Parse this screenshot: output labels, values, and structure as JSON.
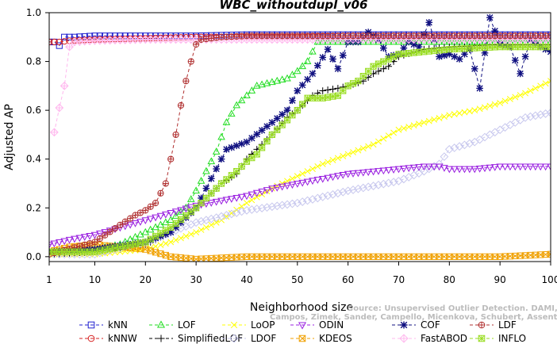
{
  "chart_data": {
    "type": "line",
    "title": "WBC_withoutdupl_v06",
    "xlabel": "Neighborhood size",
    "ylabel": "Adjusted AP",
    "xlim": [
      1,
      100
    ],
    "ylim": [
      -0.02,
      1.0
    ],
    "xticks": [
      1,
      10,
      20,
      30,
      40,
      50,
      60,
      70,
      80,
      90,
      100
    ],
    "yticks": [
      "0.0",
      "0.2",
      "0.4",
      "0.6",
      "0.8",
      "1.0"
    ],
    "grid": false,
    "legend_position": "bottom",
    "watermark_line1": "Source: Unsupervised Outlier Detection. DAMI, 2015.",
    "watermark_line2": "Campos, Zimek, Sander, Campello, Micenkova, Schubert, Assent, Houle",
    "series": [
      {
        "name": "kNN",
        "color": "#1f1fcf",
        "marker": "square",
        "points": [
          [
            1,
            0.88
          ],
          [
            2,
            0.88
          ],
          [
            3,
            0.865
          ],
          [
            4,
            0.9
          ],
          [
            5,
            0.9
          ],
          [
            6,
            0.9
          ],
          [
            10,
            0.905
          ],
          [
            20,
            0.905
          ],
          [
            30,
            0.905
          ],
          [
            40,
            0.91
          ],
          [
            50,
            0.91
          ],
          [
            60,
            0.91
          ],
          [
            70,
            0.91
          ],
          [
            80,
            0.91
          ],
          [
            90,
            0.91
          ],
          [
            100,
            0.91
          ]
        ]
      },
      {
        "name": "kNNW",
        "color": "#d62020",
        "marker": "circle",
        "points": [
          [
            1,
            0.88
          ],
          [
            3,
            0.88
          ],
          [
            5,
            0.885
          ],
          [
            10,
            0.89
          ],
          [
            20,
            0.895
          ],
          [
            30,
            0.9
          ],
          [
            40,
            0.9
          ],
          [
            50,
            0.9
          ],
          [
            60,
            0.905
          ],
          [
            70,
            0.905
          ],
          [
            80,
            0.905
          ],
          [
            90,
            0.905
          ],
          [
            100,
            0.905
          ]
        ]
      },
      {
        "name": "LOF",
        "color": "#22dd22",
        "marker": "triangle-up",
        "points": [
          [
            1,
            0.02
          ],
          [
            10,
            0.03
          ],
          [
            15,
            0.05
          ],
          [
            20,
            0.1
          ],
          [
            25,
            0.15
          ],
          [
            28,
            0.2
          ],
          [
            30,
            0.27
          ],
          [
            32,
            0.35
          ],
          [
            34,
            0.43
          ],
          [
            36,
            0.55
          ],
          [
            38,
            0.62
          ],
          [
            40,
            0.66
          ],
          [
            42,
            0.7
          ],
          [
            44,
            0.71
          ],
          [
            46,
            0.72
          ],
          [
            48,
            0.73
          ],
          [
            50,
            0.76
          ],
          [
            52,
            0.8
          ],
          [
            54,
            0.88
          ],
          [
            56,
            0.88
          ],
          [
            60,
            0.88
          ],
          [
            70,
            0.88
          ],
          [
            80,
            0.88
          ],
          [
            90,
            0.88
          ],
          [
            100,
            0.88
          ]
        ]
      },
      {
        "name": "SimplifiedLOF",
        "color": "#000000",
        "marker": "plus",
        "points": [
          [
            1,
            0.01
          ],
          [
            10,
            0.02
          ],
          [
            15,
            0.03
          ],
          [
            20,
            0.05
          ],
          [
            25,
            0.1
          ],
          [
            30,
            0.2
          ],
          [
            35,
            0.3
          ],
          [
            38,
            0.34
          ],
          [
            40,
            0.4
          ],
          [
            42,
            0.44
          ],
          [
            45,
            0.5
          ],
          [
            48,
            0.57
          ],
          [
            50,
            0.6
          ],
          [
            53,
            0.66
          ],
          [
            55,
            0.68
          ],
          [
            58,
            0.69
          ],
          [
            60,
            0.7
          ],
          [
            63,
            0.72
          ],
          [
            65,
            0.75
          ],
          [
            68,
            0.78
          ],
          [
            70,
            0.82
          ],
          [
            75,
            0.85
          ],
          [
            80,
            0.86
          ],
          [
            90,
            0.87
          ],
          [
            100,
            0.87
          ]
        ]
      },
      {
        "name": "LoOP",
        "color": "#ffff00",
        "marker": "cross",
        "points": [
          [
            1,
            0.01
          ],
          [
            10,
            0.01
          ],
          [
            20,
            0.03
          ],
          [
            25,
            0.06
          ],
          [
            30,
            0.1
          ],
          [
            35,
            0.15
          ],
          [
            40,
            0.22
          ],
          [
            45,
            0.28
          ],
          [
            50,
            0.33
          ],
          [
            55,
            0.38
          ],
          [
            60,
            0.42
          ],
          [
            65,
            0.46
          ],
          [
            70,
            0.52
          ],
          [
            75,
            0.55
          ],
          [
            80,
            0.58
          ],
          [
            85,
            0.6
          ],
          [
            90,
            0.63
          ],
          [
            95,
            0.67
          ],
          [
            100,
            0.72
          ]
        ]
      },
      {
        "name": "LDOF",
        "color": "#c8c8ee",
        "marker": "diamond",
        "points": [
          [
            1,
            0.01
          ],
          [
            10,
            0.01
          ],
          [
            20,
            0.06
          ],
          [
            30,
            0.14
          ],
          [
            40,
            0.19
          ],
          [
            50,
            0.22
          ],
          [
            60,
            0.27
          ],
          [
            70,
            0.31
          ],
          [
            75,
            0.35
          ],
          [
            78,
            0.38
          ],
          [
            80,
            0.44
          ],
          [
            85,
            0.47
          ],
          [
            90,
            0.52
          ],
          [
            95,
            0.57
          ],
          [
            100,
            0.59
          ]
        ]
      },
      {
        "name": "ODIN",
        "color": "#9a20e0",
        "marker": "triangle-down",
        "points": [
          [
            1,
            0.05
          ],
          [
            5,
            0.07
          ],
          [
            10,
            0.09
          ],
          [
            15,
            0.12
          ],
          [
            20,
            0.15
          ],
          [
            25,
            0.18
          ],
          [
            30,
            0.21
          ],
          [
            35,
            0.23
          ],
          [
            40,
            0.25
          ],
          [
            45,
            0.28
          ],
          [
            50,
            0.3
          ],
          [
            55,
            0.32
          ],
          [
            60,
            0.34
          ],
          [
            65,
            0.35
          ],
          [
            70,
            0.36
          ],
          [
            75,
            0.37
          ],
          [
            78,
            0.37
          ],
          [
            80,
            0.36
          ],
          [
            85,
            0.36
          ],
          [
            90,
            0.37
          ],
          [
            100,
            0.37
          ]
        ]
      },
      {
        "name": "KDEOS",
        "color": "#f0a000",
        "marker": "square-x",
        "points": [
          [
            1,
            0.02
          ],
          [
            5,
            0.04
          ],
          [
            10,
            0.05
          ],
          [
            15,
            0.04
          ],
          [
            20,
            0.03
          ],
          [
            25,
            0.0
          ],
          [
            30,
            -0.01
          ],
          [
            40,
            0.0
          ],
          [
            50,
            0.0
          ],
          [
            60,
            0.0
          ],
          [
            70,
            0.0
          ],
          [
            80,
            0.0
          ],
          [
            90,
            0.0
          ],
          [
            100,
            0.01
          ]
        ]
      },
      {
        "name": "COF",
        "color": "#101080",
        "marker": "asterisk",
        "points": [
          [
            1,
            0.02
          ],
          [
            10,
            0.03
          ],
          [
            20,
            0.06
          ],
          [
            25,
            0.1
          ],
          [
            30,
            0.2
          ],
          [
            33,
            0.32
          ],
          [
            36,
            0.44
          ],
          [
            40,
            0.47
          ],
          [
            45,
            0.55
          ],
          [
            48,
            0.6
          ],
          [
            50,
            0.68
          ],
          [
            53,
            0.75
          ],
          [
            56,
            0.85
          ],
          [
            58,
            0.77
          ],
          [
            60,
            0.88
          ],
          [
            62,
            0.88
          ],
          [
            64,
            0.92
          ],
          [
            66,
            0.89
          ],
          [
            68,
            0.82
          ],
          [
            70,
            0.83
          ],
          [
            72,
            0.88
          ],
          [
            74,
            0.86
          ],
          [
            76,
            0.96
          ],
          [
            78,
            0.82
          ],
          [
            80,
            0.83
          ],
          [
            82,
            0.81
          ],
          [
            84,
            0.85
          ],
          [
            86,
            0.69
          ],
          [
            88,
            0.98
          ],
          [
            90,
            0.87
          ],
          [
            92,
            0.86
          ],
          [
            94,
            0.75
          ],
          [
            96,
            0.89
          ],
          [
            98,
            0.86
          ],
          [
            100,
            0.84
          ]
        ]
      },
      {
        "name": "FastABOD",
        "color": "#ffb8ee",
        "marker": "diamond-plus",
        "points": [
          [
            2,
            0.51
          ],
          [
            3,
            0.61
          ],
          [
            4,
            0.7
          ],
          [
            5,
            0.86
          ],
          [
            6,
            0.88
          ],
          [
            10,
            0.885
          ],
          [
            20,
            0.89
          ],
          [
            30,
            0.89
          ],
          [
            40,
            0.89
          ],
          [
            50,
            0.89
          ],
          [
            60,
            0.89
          ],
          [
            70,
            0.89
          ],
          [
            80,
            0.89
          ],
          [
            90,
            0.89
          ],
          [
            100,
            0.89
          ]
        ]
      },
      {
        "name": "LDF",
        "color": "#b03030",
        "marker": "circle-plus",
        "points": [
          [
            1,
            0.01
          ],
          [
            10,
            0.06
          ],
          [
            15,
            0.13
          ],
          [
            18,
            0.17
          ],
          [
            20,
            0.19
          ],
          [
            22,
            0.22
          ],
          [
            24,
            0.3
          ],
          [
            25,
            0.4
          ],
          [
            26,
            0.5
          ],
          [
            27,
            0.62
          ],
          [
            28,
            0.72
          ],
          [
            29,
            0.8
          ],
          [
            30,
            0.87
          ],
          [
            31,
            0.89
          ],
          [
            35,
            0.9
          ],
          [
            40,
            0.905
          ],
          [
            50,
            0.905
          ],
          [
            60,
            0.905
          ],
          [
            70,
            0.905
          ],
          [
            80,
            0.905
          ],
          [
            90,
            0.905
          ],
          [
            100,
            0.905
          ]
        ]
      },
      {
        "name": "INFLO",
        "color": "#99dd22",
        "marker": "square-star",
        "points": [
          [
            1,
            0.02
          ],
          [
            10,
            0.02
          ],
          [
            15,
            0.04
          ],
          [
            20,
            0.06
          ],
          [
            25,
            0.12
          ],
          [
            30,
            0.2
          ],
          [
            35,
            0.3
          ],
          [
            38,
            0.35
          ],
          [
            40,
            0.39
          ],
          [
            42,
            0.42
          ],
          [
            45,
            0.5
          ],
          [
            48,
            0.56
          ],
          [
            50,
            0.6
          ],
          [
            52,
            0.65
          ],
          [
            55,
            0.65
          ],
          [
            58,
            0.66
          ],
          [
            60,
            0.7
          ],
          [
            62,
            0.72
          ],
          [
            65,
            0.78
          ],
          [
            70,
            0.83
          ],
          [
            75,
            0.84
          ],
          [
            80,
            0.85
          ],
          [
            90,
            0.86
          ],
          [
            100,
            0.86
          ]
        ]
      }
    ]
  }
}
